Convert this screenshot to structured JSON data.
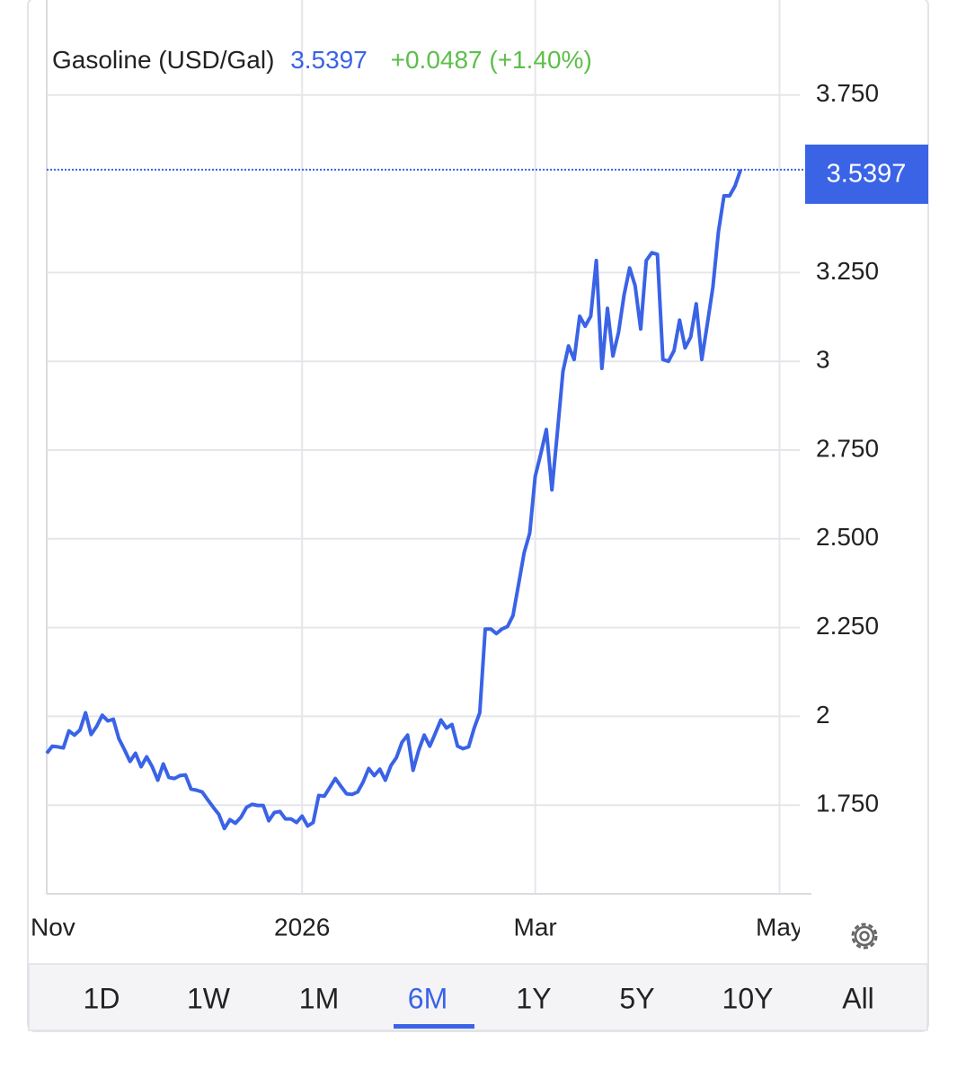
{
  "chart_data": {
    "type": "line",
    "title": "Gasoline (USD/Gal)",
    "change": "+0.0487 (+1.40%)",
    "series": [
      {
        "name": "Gasoline",
        "color": "#3a63e6",
        "values": [
          1.896,
          1.916,
          1.914,
          1.911,
          1.959,
          1.947,
          1.962,
          2.01,
          1.949,
          1.972,
          2.003,
          1.987,
          1.992,
          1.937,
          1.906,
          1.873,
          1.896,
          1.858,
          1.886,
          1.858,
          1.82,
          1.866,
          1.828,
          1.825,
          1.833,
          1.835,
          1.795,
          1.792,
          1.787,
          1.765,
          1.744,
          1.724,
          1.684,
          1.709,
          1.699,
          1.716,
          1.744,
          1.752,
          1.749,
          1.749,
          1.706,
          1.729,
          1.732,
          1.711,
          1.711,
          1.701,
          1.719,
          1.691,
          1.701,
          1.777,
          1.775,
          1.8,
          1.825,
          1.803,
          1.782,
          1.78,
          1.787,
          1.815,
          1.853,
          1.833,
          1.851,
          1.82,
          1.861,
          1.884,
          1.927,
          1.947,
          1.848,
          1.904,
          1.947,
          1.916,
          1.952,
          1.99,
          1.967,
          1.977,
          1.916,
          1.909,
          1.914,
          1.967,
          2.01,
          2.246,
          2.246,
          2.233,
          2.246,
          2.253,
          2.284,
          2.372,
          2.461,
          2.516,
          2.676,
          2.739,
          2.808,
          2.638,
          2.803,
          2.972,
          3.043,
          3.005,
          3.127,
          3.099,
          3.127,
          3.284,
          2.98,
          3.149,
          3.015,
          3.081,
          3.187,
          3.263,
          3.213,
          3.091,
          3.284,
          3.306,
          3.301,
          3.005,
          3.0,
          3.03,
          3.116,
          3.038,
          3.068,
          3.162,
          3.005,
          3.106,
          3.208,
          3.365,
          3.466,
          3.466,
          3.494,
          3.5397
        ]
      }
    ],
    "xlim": [
      0,
      135
    ],
    "xticks": [
      {
        "value": 0,
        "label": "Nov"
      },
      {
        "value": 46,
        "label": "2026"
      },
      {
        "value": 88,
        "label": "Mar"
      },
      {
        "value": 132,
        "label": "May"
      }
    ],
    "ylim": [
      1.5,
      4.0
    ],
    "yticks": [
      {
        "value": 1.75,
        "label": "1.750"
      },
      2,
      {
        "value": 2.25,
        "label": "2.250"
      },
      {
        "value": 2.5,
        "label": "2.500"
      },
      {
        "value": 2.75,
        "label": "2.750"
      },
      3,
      {
        "value": 3.25,
        "label": "3.250"
      },
      {
        "value": 3.75,
        "label": "3.750"
      }
    ],
    "grid": true,
    "ranges": [
      "1D",
      "1W",
      "1M",
      "6M",
      "1Y",
      "5Y",
      "10Y",
      "All"
    ],
    "active_range": 3
  }
}
